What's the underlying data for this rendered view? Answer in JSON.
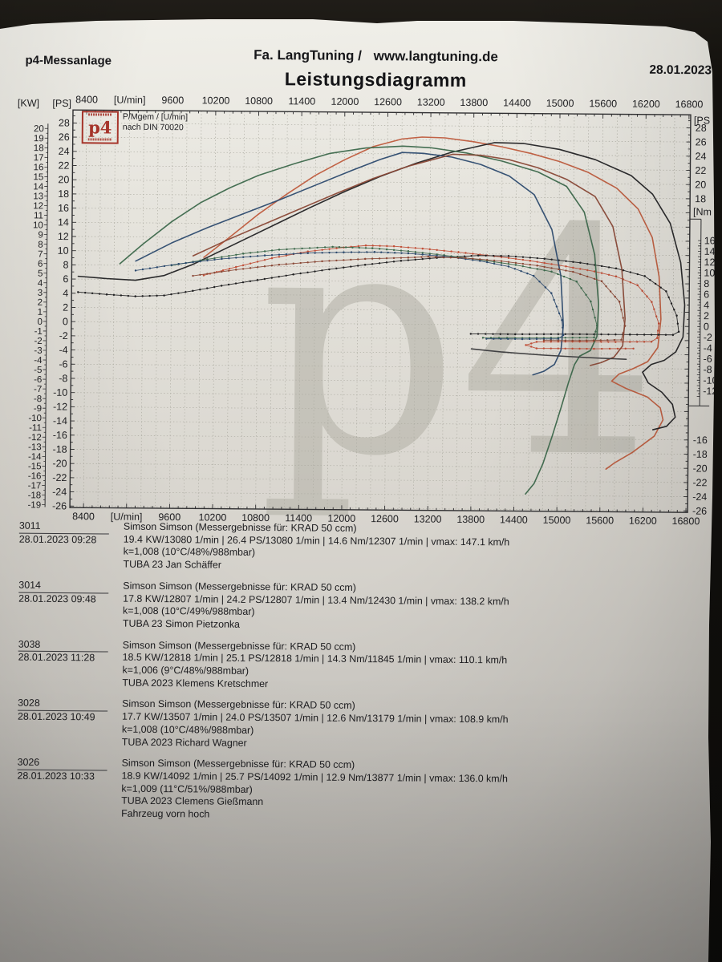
{
  "header": {
    "system": "p4-Messanlage",
    "company": "Fa. LangTuning /",
    "website": "www.langtuning.de",
    "date": "28.01.2023",
    "title": "Leistungsdiagramm"
  },
  "legend": {
    "line1": "P/Mgem / [U/min]",
    "line2": "nach DIN 70020"
  },
  "logo_text": "p4",
  "watermark": "p4",
  "chart_data": {
    "type": "line",
    "title": "Leistungsdiagramm",
    "x_axis": {
      "label": "[U/min]",
      "min": 8400,
      "max": 16800,
      "tick_step": 600,
      "grid_step": 200
    },
    "y_axis_kw": {
      "label": "[KW]",
      "min": -19,
      "max": 20,
      "tick_step": 1
    },
    "y_axis_ps": {
      "label": "[PS]",
      "min": -26,
      "max": 28,
      "tick_step": 2
    },
    "y_axis_nm": {
      "label": "[Nm",
      "min": -12,
      "max": 16,
      "tick_step": 2
    },
    "right_ps_label": "[PS",
    "grid": true,
    "series": [
      {
        "run": "3011",
        "kind": "power",
        "unit": "PS",
        "color": "#bf5b3c",
        "style": "solid",
        "points": [
          [
            10050,
            9.2
          ],
          [
            10400,
            12
          ],
          [
            10800,
            15.3
          ],
          [
            11200,
            18.2
          ],
          [
            11600,
            20.9
          ],
          [
            12000,
            23.1
          ],
          [
            12400,
            25
          ],
          [
            12800,
            26.1
          ],
          [
            13080,
            26.4
          ],
          [
            13400,
            26.3
          ],
          [
            13800,
            25.8
          ],
          [
            14200,
            25.1
          ],
          [
            14600,
            24.2
          ],
          [
            15000,
            23.1
          ],
          [
            15400,
            21.6
          ],
          [
            15800,
            19.4
          ],
          [
            16100,
            16.5
          ],
          [
            16300,
            12.5
          ],
          [
            16400,
            7
          ],
          [
            16430,
            1
          ],
          [
            16390,
            -3
          ],
          [
            16250,
            -5
          ],
          [
            16050,
            -6
          ],
          [
            15850,
            -6.8
          ],
          [
            15750,
            -7.8
          ],
          [
            15950,
            -8.8
          ],
          [
            16250,
            -10
          ],
          [
            16430,
            -11.5
          ],
          [
            16470,
            -13.2
          ],
          [
            16350,
            -15.5
          ],
          [
            16050,
            -17.8
          ],
          [
            15800,
            -19.3
          ],
          [
            15680,
            -20.2
          ]
        ]
      },
      {
        "run": "3011",
        "kind": "torque",
        "unit": "Nm",
        "color": "#c14f38",
        "style": "dotted",
        "points": [
          [
            10050,
            8.8
          ],
          [
            10500,
            10.4
          ],
          [
            11000,
            12.1
          ],
          [
            11500,
            13.4
          ],
          [
            12000,
            14.2
          ],
          [
            12307,
            14.6
          ],
          [
            12700,
            14.5
          ],
          [
            13100,
            14.1
          ],
          [
            13600,
            13.5
          ],
          [
            14100,
            12.8
          ],
          [
            14600,
            12
          ],
          [
            15100,
            11
          ],
          [
            15500,
            10.1
          ],
          [
            15800,
            9.2
          ],
          [
            16100,
            7.6
          ],
          [
            16300,
            4.5
          ],
          [
            16400,
            0.5
          ],
          [
            16380,
            -2.2
          ],
          [
            16300,
            -2.9
          ],
          [
            15800,
            -3
          ],
          [
            15200,
            -3
          ],
          [
            14700,
            -3.1
          ],
          [
            14550,
            -3.7
          ],
          [
            14700,
            -4.3
          ],
          [
            15500,
            -4.3
          ],
          [
            16050,
            -4.2
          ]
        ]
      },
      {
        "run": "3026",
        "kind": "power",
        "unit": "PS",
        "color": "#212123",
        "style": "solid",
        "points": [
          [
            8300,
            6.4
          ],
          [
            8700,
            6.1
          ],
          [
            9100,
            5.9
          ],
          [
            9500,
            6.6
          ],
          [
            9900,
            8.2
          ],
          [
            10300,
            10.2
          ],
          [
            10700,
            12.2
          ],
          [
            11100,
            14.2
          ],
          [
            11500,
            16.2
          ],
          [
            12000,
            18.6
          ],
          [
            12500,
            20.8
          ],
          [
            13000,
            22.7
          ],
          [
            13500,
            24.3
          ],
          [
            14092,
            25.7
          ],
          [
            14500,
            25.6
          ],
          [
            15000,
            24.8
          ],
          [
            15500,
            23.4
          ],
          [
            16000,
            21.2
          ],
          [
            16300,
            18.6
          ],
          [
            16550,
            14.5
          ],
          [
            16700,
            9
          ],
          [
            16760,
            3
          ],
          [
            16740,
            -1.5
          ],
          [
            16640,
            -3.6
          ],
          [
            16480,
            -4.8
          ],
          [
            16300,
            -5.4
          ],
          [
            16180,
            -6.5
          ],
          [
            16260,
            -8
          ],
          [
            16450,
            -9.3
          ],
          [
            16600,
            -11
          ],
          [
            16640,
            -12.8
          ],
          [
            16520,
            -14.1
          ],
          [
            16330,
            -14.6
          ]
        ]
      },
      {
        "run": "3026",
        "kind": "torque",
        "unit": "Nm",
        "color": "#212123",
        "style": "dotted",
        "points": [
          [
            8300,
            5.5
          ],
          [
            8700,
            5.1
          ],
          [
            9100,
            4.8
          ],
          [
            9500,
            5
          ],
          [
            9900,
            5.9
          ],
          [
            10300,
            6.9
          ],
          [
            10800,
            8
          ],
          [
            11300,
            9.1
          ],
          [
            11800,
            10.1
          ],
          [
            12300,
            11
          ],
          [
            12800,
            11.8
          ],
          [
            13300,
            12.4
          ],
          [
            13877,
            12.9
          ],
          [
            14300,
            12.85
          ],
          [
            14800,
            12.4
          ],
          [
            15300,
            11.7
          ],
          [
            15800,
            10.7
          ],
          [
            16200,
            9.3
          ],
          [
            16500,
            6.5
          ],
          [
            16650,
            2
          ],
          [
            16680,
            -1
          ],
          [
            16600,
            -1.6
          ],
          [
            16000,
            -1.6
          ],
          [
            15200,
            -1.6
          ],
          [
            14400,
            -1.7
          ],
          [
            13780,
            -1.7
          ]
        ]
      },
      {
        "run": "3038",
        "kind": "power",
        "unit": "PS",
        "color": "#3c684b",
        "style": "solid",
        "points": [
          [
            8880,
            8.2
          ],
          [
            9200,
            11
          ],
          [
            9600,
            14.2
          ],
          [
            10000,
            16.9
          ],
          [
            10400,
            19
          ],
          [
            10800,
            20.8
          ],
          [
            11300,
            22.5
          ],
          [
            11800,
            24
          ],
          [
            12300,
            24.8
          ],
          [
            12818,
            25.1
          ],
          [
            13200,
            24.9
          ],
          [
            13700,
            24.2
          ],
          [
            14200,
            23.1
          ],
          [
            14700,
            21.6
          ],
          [
            15100,
            19.6
          ],
          [
            15350,
            16
          ],
          [
            15500,
            10
          ],
          [
            15560,
            3
          ],
          [
            15540,
            -1.5
          ],
          [
            15450,
            -3.5
          ],
          [
            15300,
            -4.3
          ],
          [
            15230,
            -5.5
          ],
          [
            15150,
            -8
          ],
          [
            15050,
            -11.5
          ],
          [
            14930,
            -15.5
          ],
          [
            14800,
            -19.5
          ],
          [
            14680,
            -22.3
          ],
          [
            14560,
            -23.8
          ]
        ]
      },
      {
        "run": "3038",
        "kind": "torque",
        "unit": "Nm",
        "color": "#3c684b",
        "style": "dotted",
        "points": [
          [
            9600,
            10.6
          ],
          [
            10100,
            11.8
          ],
          [
            10600,
            12.9
          ],
          [
            11100,
            13.7
          ],
          [
            11845,
            14.3
          ],
          [
            12400,
            14.1
          ],
          [
            12900,
            13.6
          ],
          [
            13400,
            12.9
          ],
          [
            13900,
            12.1
          ],
          [
            14400,
            11.2
          ],
          [
            14900,
            10
          ],
          [
            15250,
            8.2
          ],
          [
            15450,
            4.5
          ],
          [
            15540,
            0
          ],
          [
            15500,
            -2.2
          ],
          [
            15000,
            -2.3
          ],
          [
            14400,
            -2.4
          ],
          [
            13950,
            -2.4
          ]
        ]
      },
      {
        "run": "3014",
        "kind": "power",
        "unit": "PS",
        "color": "#2c4a6e",
        "style": "solid",
        "points": [
          [
            9100,
            8.6
          ],
          [
            9600,
            11.2
          ],
          [
            10100,
            13.4
          ],
          [
            10600,
            15.4
          ],
          [
            11100,
            17.4
          ],
          [
            11600,
            19.5
          ],
          [
            12100,
            21.6
          ],
          [
            12500,
            23.2
          ],
          [
            12807,
            24.2
          ],
          [
            13100,
            24.1
          ],
          [
            13500,
            23.6
          ],
          [
            13900,
            22.6
          ],
          [
            14300,
            21
          ],
          [
            14650,
            18.4
          ],
          [
            14900,
            13.5
          ],
          [
            15030,
            7
          ],
          [
            15070,
            0
          ],
          [
            15040,
            -3.5
          ],
          [
            14950,
            -5.5
          ],
          [
            14800,
            -6.5
          ],
          [
            14650,
            -7
          ]
        ]
      },
      {
        "run": "3014",
        "kind": "torque",
        "unit": "Nm",
        "color": "#2c4a6e",
        "style": "dotted",
        "points": [
          [
            9100,
            9.6
          ],
          [
            9700,
            10.9
          ],
          [
            10300,
            11.9
          ],
          [
            10900,
            12.6
          ],
          [
            11500,
            13.1
          ],
          [
            12000,
            13.3
          ],
          [
            12430,
            13.4
          ],
          [
            12900,
            13.2
          ],
          [
            13400,
            12.7
          ],
          [
            13900,
            11.9
          ],
          [
            14300,
            10.9
          ],
          [
            14650,
            9.2
          ],
          [
            14900,
            6
          ],
          [
            15050,
            1
          ],
          [
            15070,
            -1.8
          ],
          [
            15000,
            -2.5
          ],
          [
            14500,
            -2.6
          ],
          [
            14000,
            -2.6
          ]
        ]
      },
      {
        "run": "3028",
        "kind": "power",
        "unit": "PS",
        "color": "#8a4836",
        "style": "solid",
        "points": [
          [
            9900,
            9.4
          ],
          [
            10400,
            11.8
          ],
          [
            10900,
            14
          ],
          [
            11400,
            16.2
          ],
          [
            11900,
            18.4
          ],
          [
            12400,
            20.5
          ],
          [
            12900,
            22.3
          ],
          [
            13507,
            24
          ],
          [
            13900,
            23.9
          ],
          [
            14300,
            23.3
          ],
          [
            14700,
            22.2
          ],
          [
            15100,
            20.6
          ],
          [
            15500,
            18.2
          ],
          [
            15750,
            14
          ],
          [
            15880,
            8
          ],
          [
            15930,
            1
          ],
          [
            15900,
            -2.8
          ],
          [
            15780,
            -4.4
          ],
          [
            15600,
            -5.2
          ],
          [
            15450,
            -5.6
          ]
        ]
      },
      {
        "run": "3028",
        "kind": "torque",
        "unit": "Nm",
        "color": "#8a4836",
        "style": "dotted",
        "points": [
          [
            9900,
            8.7
          ],
          [
            10500,
            9.9
          ],
          [
            11100,
            10.9
          ],
          [
            11700,
            11.6
          ],
          [
            12300,
            12.1
          ],
          [
            12900,
            12.4
          ],
          [
            13179,
            12.6
          ],
          [
            13700,
            12.4
          ],
          [
            14200,
            11.9
          ],
          [
            14700,
            11.1
          ],
          [
            15200,
            10
          ],
          [
            15600,
            8.3
          ],
          [
            15850,
            4.5
          ],
          [
            15930,
            0
          ],
          [
            15880,
            -2.6
          ],
          [
            15300,
            -2.8
          ],
          [
            14800,
            -2.8
          ]
        ]
      },
      {
        "run": "coast",
        "kind": "power",
        "unit": "PS",
        "color": "#3a3a3c",
        "style": "solid",
        "points": [
          [
            13790,
            -3.4
          ],
          [
            14200,
            -3.8
          ],
          [
            14800,
            -4.2
          ],
          [
            15400,
            -4.5
          ],
          [
            15950,
            -4.7
          ]
        ]
      }
    ]
  },
  "entries": [
    {
      "id": "3011",
      "datetime": "28.01.2023  09:28",
      "model": "Simson Simson (Messergebnisse für: KRAD 50 ccm)",
      "results": "19.4 KW/13080 1/min  |  26.4 PS/13080 1/min  |  14.6 Nm/12307 1/min | vmax: 147.1 km/h",
      "conditions": "k=1,008 (10°C/48%/988mbar)",
      "vehicle": "TUBA 23 Jan Schäffer",
      "note": ""
    },
    {
      "id": "3014",
      "datetime": "28.01.2023  09:48",
      "model": "Simson Simson (Messergebnisse für: KRAD 50 ccm)",
      "results": "17.8 KW/12807 1/min  |  24.2 PS/12807 1/min  |  13.4 Nm/12430 1/min | vmax: 138.2 km/h",
      "conditions": "k=1,008 (10°C/49%/988mbar)",
      "vehicle": "TUBA 23 Simon Pietzonka",
      "note": ""
    },
    {
      "id": "3038",
      "datetime": "28.01.2023  11:28",
      "model": "Simson Simson (Messergebnisse für: KRAD 50 ccm)",
      "results": "18.5 KW/12818 1/min  |  25.1 PS/12818 1/min  |  14.3 Nm/11845 1/min | vmax: 110.1 km/h",
      "conditions": "k=1,006 (9°C/48%/988mbar)",
      "vehicle": "TUBA 2023 Klemens Kretschmer",
      "note": ""
    },
    {
      "id": "3028",
      "datetime": "28.01.2023  10:49",
      "model": "Simson Simson (Messergebnisse für: KRAD 50 ccm)",
      "results": "17.7 KW/13507 1/min  |  24.0 PS/13507 1/min  |  12.6 Nm/13179 1/min | vmax: 108.9 km/h",
      "conditions": "k=1,008 (10°C/48%/988mbar)",
      "vehicle": "TUBA 2023 Richard Wagner",
      "note": ""
    },
    {
      "id": "3026",
      "datetime": "28.01.2023  10:33",
      "model": "Simson Simson (Messergebnisse für: KRAD 50 ccm)",
      "results": "18.9 KW/14092 1/min  |  25.7 PS/14092 1/min  |  12.9 Nm/13877 1/min | vmax: 136.0 km/h",
      "conditions": "k=1,009 (11°C/51%/988mbar)",
      "vehicle": "TUBA 2023 Clemens Gießmann",
      "note": "Fahrzeug vorn hoch"
    }
  ]
}
